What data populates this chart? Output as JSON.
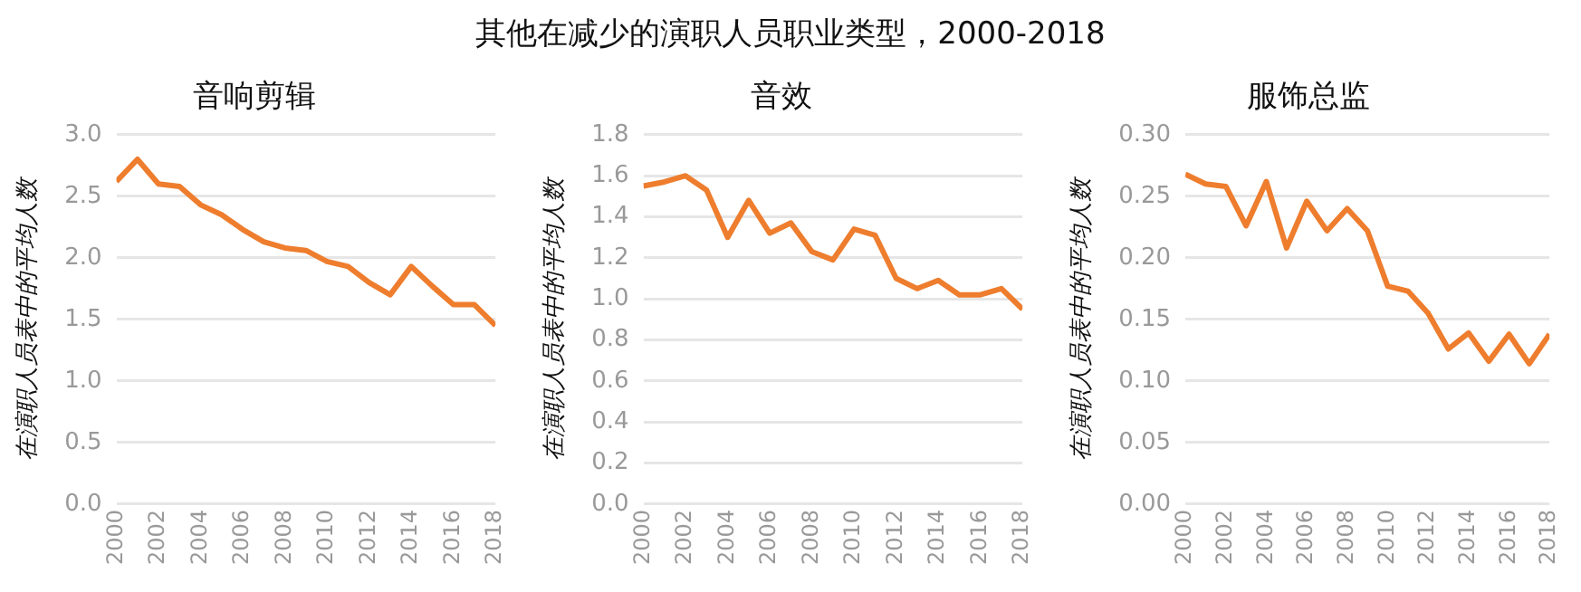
{
  "chart_data": [
    {
      "type": "line",
      "annotations": [
        "其他在减少的演职人员职业类型，2000-2018"
      ],
      "title": "音响剪辑",
      "ylabel": "在演职人员表中的平均人数",
      "x": [
        2000,
        2001,
        2002,
        2003,
        2004,
        2005,
        2006,
        2007,
        2008,
        2009,
        2010,
        2011,
        2012,
        2013,
        2014,
        2015,
        2016,
        2017,
        2018
      ],
      "xlim": [
        2000,
        2018
      ],
      "xticks": [
        2000,
        2002,
        2004,
        2006,
        2008,
        2010,
        2012,
        2014,
        2016,
        2018
      ],
      "ylim": [
        0,
        3
      ],
      "yticks": [
        {
          "value": 0,
          "label": "0.0"
        },
        {
          "value": 0.5,
          "label": "0.5"
        },
        {
          "value": 1,
          "label": "1.0"
        },
        {
          "value": 1.5,
          "label": "1.5"
        },
        {
          "value": 2,
          "label": "2.0"
        },
        {
          "value": 2.5,
          "label": "2.5"
        },
        {
          "value": 3,
          "label": "3.0"
        }
      ],
      "grid": "y",
      "legend": false,
      "marker": "none",
      "series": [
        {
          "color": "#ee7d2e",
          "values": [
            2.62,
            2.8,
            2.6,
            2.58,
            2.43,
            2.35,
            2.23,
            2.13,
            2.08,
            2.06,
            1.97,
            1.93,
            1.8,
            1.7,
            1.93,
            1.77,
            1.62,
            1.62,
            1.45
          ]
        }
      ]
    },
    {
      "type": "line",
      "title": "音效",
      "ylabel": "在演职人员表中的平均人数",
      "x": [
        2000,
        2001,
        2002,
        2003,
        2004,
        2005,
        2006,
        2007,
        2008,
        2009,
        2010,
        2011,
        2012,
        2013,
        2014,
        2015,
        2016,
        2017,
        2018
      ],
      "xlim": [
        2000,
        2018
      ],
      "xticks": [
        2000,
        2002,
        2004,
        2006,
        2008,
        2010,
        2012,
        2014,
        2016,
        2018
      ],
      "ylim": [
        0,
        1.8
      ],
      "yticks": [
        {
          "value": 0,
          "label": "0.0"
        },
        {
          "value": 0.2,
          "label": "0.2"
        },
        {
          "value": 0.4,
          "label": "0.4"
        },
        {
          "value": 0.6,
          "label": "0.6"
        },
        {
          "value": 0.8,
          "label": "0.8"
        },
        {
          "value": 1,
          "label": "1.0"
        },
        {
          "value": 1.2,
          "label": "1.2"
        },
        {
          "value": 1.4,
          "label": "1.4"
        },
        {
          "value": 1.6,
          "label": "1.6"
        },
        {
          "value": 1.8,
          "label": "1.8"
        }
      ],
      "grid": "y",
      "legend": false,
      "marker": "none",
      "series": [
        {
          "color": "#ee7d2e",
          "values": [
            1.55,
            1.57,
            1.6,
            1.53,
            1.3,
            1.48,
            1.32,
            1.37,
            1.23,
            1.19,
            1.34,
            1.31,
            1.1,
            1.05,
            1.09,
            1.02,
            1.02,
            1.05,
            0.95
          ]
        }
      ]
    },
    {
      "type": "line",
      "title": "服饰总监",
      "ylabel": "在演职人员表中的平均人数",
      "x": [
        2000,
        2001,
        2002,
        2003,
        2004,
        2005,
        2006,
        2007,
        2008,
        2009,
        2010,
        2011,
        2012,
        2013,
        2014,
        2015,
        2016,
        2017,
        2018
      ],
      "xlim": [
        2000,
        2018
      ],
      "xticks": [
        2000,
        2002,
        2004,
        2006,
        2008,
        2010,
        2012,
        2014,
        2016,
        2018
      ],
      "ylim": [
        0,
        0.3
      ],
      "yticks": [
        {
          "value": 0,
          "label": "0.00"
        },
        {
          "value": 0.05,
          "label": "0.05"
        },
        {
          "value": 0.1,
          "label": "0.10"
        },
        {
          "value": 0.15,
          "label": "0.15"
        },
        {
          "value": 0.2,
          "label": "0.20"
        },
        {
          "value": 0.25,
          "label": "0.25"
        },
        {
          "value": 0.3,
          "label": "0.30"
        }
      ],
      "grid": "y",
      "legend": false,
      "marker": "none",
      "series": [
        {
          "color": "#ee7d2e",
          "values": [
            0.268,
            0.26,
            0.258,
            0.226,
            0.262,
            0.208,
            0.246,
            0.222,
            0.24,
            0.222,
            0.177,
            0.173,
            0.155,
            0.126,
            0.139,
            0.116,
            0.138,
            0.114,
            0.138
          ]
        }
      ]
    }
  ]
}
